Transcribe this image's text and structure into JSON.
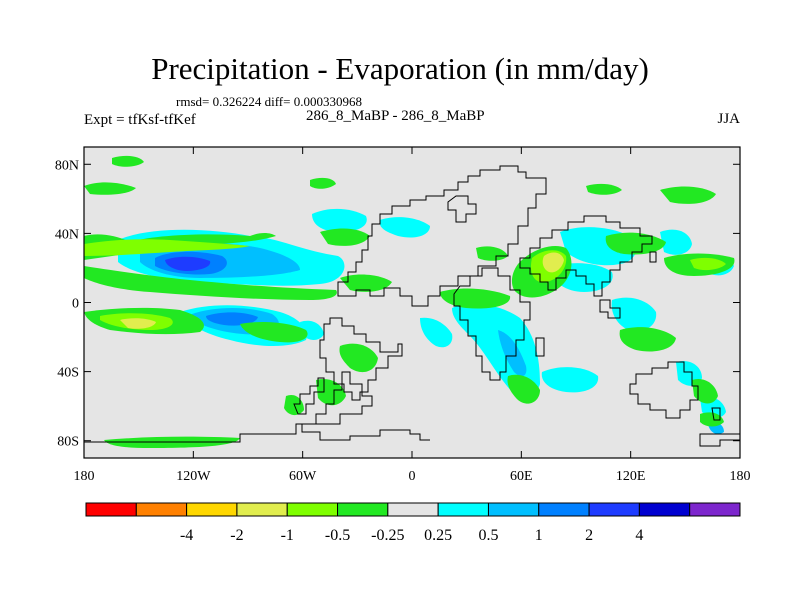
{
  "title": "Precipitation - Evaporation (in mm/day)",
  "stats": "rmsd= 0.326224  diff= 0.000330968",
  "left_label": "Expt = tfKsf-tfKef",
  "center_label": "286_8_MaBP - 286_8_MaBP",
  "right_label": "JJA",
  "axes": {
    "lat_ticks": [
      {
        "value": 80,
        "label": "80N"
      },
      {
        "value": 40,
        "label": "40N"
      },
      {
        "value": 0,
        "label": "0"
      },
      {
        "value": -40,
        "label": "40S"
      },
      {
        "value": -80,
        "label": "80S"
      }
    ],
    "lon_ticks": [
      {
        "value": -180,
        "label": "180"
      },
      {
        "value": -120,
        "label": "120W"
      },
      {
        "value": -60,
        "label": "60W"
      },
      {
        "value": 0,
        "label": "0"
      },
      {
        "value": 60,
        "label": "60E"
      },
      {
        "value": 120,
        "label": "120E"
      },
      {
        "value": 180,
        "label": "180"
      }
    ],
    "lat_range": [
      -90,
      90
    ],
    "lon_range": [
      -180,
      180
    ]
  },
  "colorbar": {
    "colors": [
      "#ff0000",
      "#ff8000",
      "#ffd700",
      "#e1ed4e",
      "#7fff00",
      "#22e822",
      "#e5e5e5",
      "#00ffff",
      "#00bfff",
      "#0080ff",
      "#1e3cff",
      "#0000d0",
      "#7d26cd"
    ],
    "labels": [
      "-4",
      "-2",
      "-1",
      "-0.5",
      "-0.25",
      "0.25",
      "0.5",
      "1",
      "2",
      "4"
    ]
  },
  "background_color": "#e5e5e5"
}
